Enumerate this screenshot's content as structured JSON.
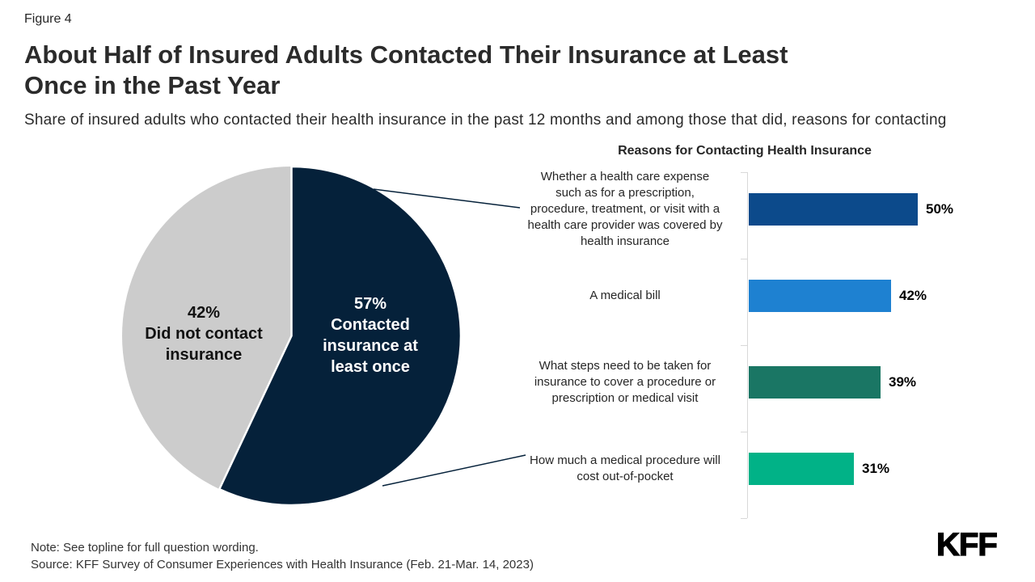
{
  "figure_label": "Figure 4",
  "title_line1": "About Half of Insured Adults Contacted Their Insurance at Least",
  "title_line2": "Once in the Past Year",
  "subtitle": "Share of insured adults who contacted their health insurance in the past 12 months and among those that did, reasons for contacting",
  "note": "Note: See topline for full question wording.",
  "source": "Source: KFF Survey of Consumer Experiences with Health Insurance (Feb. 21-Mar. 14, 2023)",
  "logo_text": "KFF",
  "colors": {
    "pie_navy": "#05213A",
    "pie_gray": "#CCCCCC",
    "leader_line": "#05213A",
    "axis_gray": "#D9D9D9",
    "bar_colors": [
      "#0C4A8B",
      "#1E81D1",
      "#1A7664",
      "#01B287"
    ]
  },
  "chart_data": [
    {
      "type": "pie",
      "slices": [
        {
          "label": "Contacted insurance at least once",
          "value": 57,
          "color": "#05213A",
          "text_lines": [
            "57%",
            "Contacted",
            "insurance at",
            "least once"
          ],
          "text_color": "#ffffff"
        },
        {
          "label": "Did not contact insurance",
          "value": 42,
          "color": "#CCCCCC",
          "text_lines": [
            "42%",
            "Did not contact",
            "insurance"
          ],
          "text_color": "#111111"
        }
      ]
    },
    {
      "type": "bar",
      "orientation": "horizontal",
      "title": "Reasons for Contacting Health Insurance",
      "xlim": [
        0,
        100
      ],
      "grid": false,
      "categories": [
        "Whether a health care expense such as for a prescription, procedure, treatment, or visit with a health care provider was covered by health insurance",
        "A medical bill",
        "What steps need to be taken for insurance to cover a procedure or prescription or medical visit",
        "How much a medical procedure will cost out-of-pocket"
      ],
      "categories_wrapped": [
        [
          "Whether a health care expense",
          "such as for a prescription,",
          "procedure, treatment, or visit with a",
          "health care provider was covered by",
          "health insurance"
        ],
        [
          "A medical bill"
        ],
        [
          "What steps need to be taken for",
          "insurance to cover a procedure or",
          "prescription or medical visit"
        ],
        [
          "How much a medical procedure will",
          "cost out-of-pocket"
        ]
      ],
      "values": [
        50,
        42,
        39,
        31
      ],
      "value_labels": [
        "50%",
        "42%",
        "39%",
        "31%"
      ],
      "bar_colors": [
        "#0C4A8B",
        "#1E81D1",
        "#1A7664",
        "#01B287"
      ]
    }
  ]
}
